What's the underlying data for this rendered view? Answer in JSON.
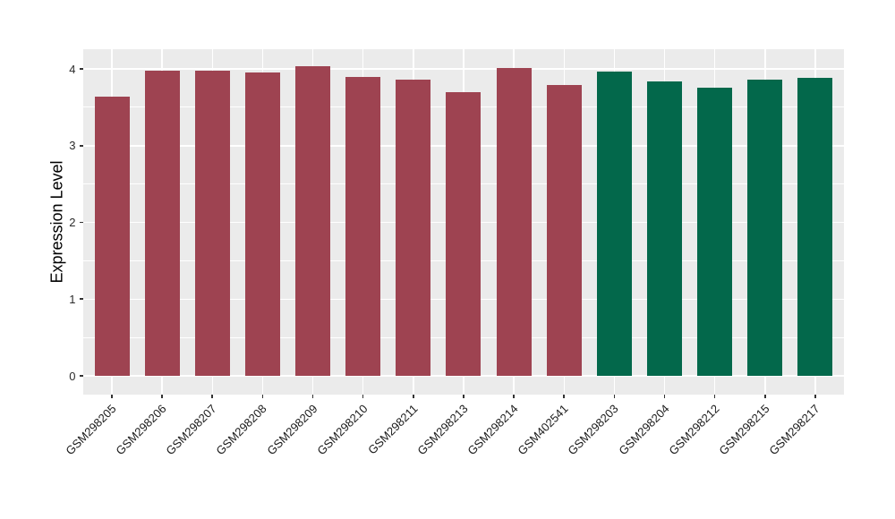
{
  "chart_data": {
    "type": "bar",
    "title": "",
    "xlabel": "",
    "ylabel": "Expression Level",
    "categories": [
      "GSM298205",
      "GSM298206",
      "GSM298207",
      "GSM298208",
      "GSM298209",
      "GSM298210",
      "GSM298211",
      "GSM298213",
      "GSM298214",
      "GSM402541",
      "GSM298203",
      "GSM298204",
      "GSM298212",
      "GSM298215",
      "GSM298217"
    ],
    "values": [
      3.64,
      3.98,
      3.98,
      3.95,
      4.04,
      3.9,
      3.86,
      3.7,
      4.01,
      3.79,
      3.97,
      3.84,
      3.75,
      3.86,
      3.88
    ],
    "bar_groups": [
      "A",
      "A",
      "A",
      "A",
      "A",
      "A",
      "A",
      "A",
      "A",
      "A",
      "B",
      "B",
      "B",
      "B",
      "B"
    ],
    "group_colors": {
      "A": "#9E4351",
      "B": "#03684B"
    },
    "ylim": [
      0,
      4.26
    ],
    "yticks": [
      "0",
      "1",
      "2",
      "3",
      "4"
    ],
    "ytick_values": [
      0,
      1,
      2,
      3,
      4
    ],
    "minor_ticks": [
      0.5,
      1.5,
      2.5,
      3.5
    ],
    "x_tick_angle": 45,
    "grid": "on",
    "legend": "none",
    "panel_background": "#EBEBEB",
    "gridline_color": "#FFFFFF"
  }
}
